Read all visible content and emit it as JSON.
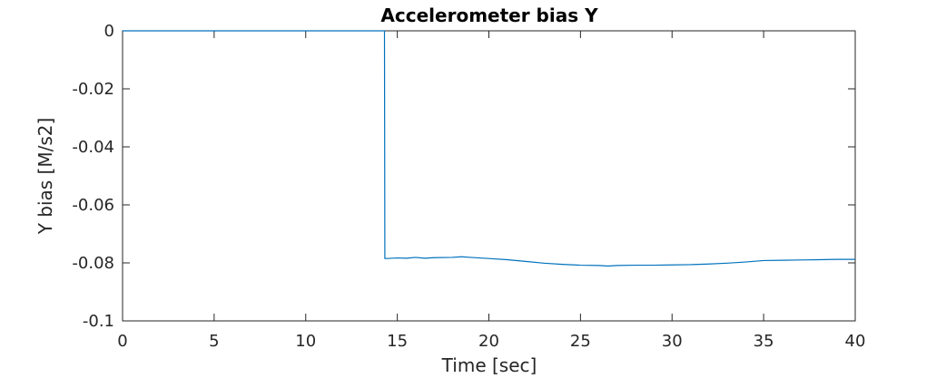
{
  "chart_data": {
    "type": "line",
    "title": "Accelerometer bias Y",
    "xlabel": "Time [sec]",
    "ylabel": "Y bias [M/s2]",
    "xlim": [
      0,
      40
    ],
    "ylim": [
      -0.1,
      0
    ],
    "grid": false,
    "x_ticks": [
      0,
      5,
      10,
      15,
      20,
      25,
      30,
      35,
      40
    ],
    "x_tick_labels": [
      "0",
      "5",
      "10",
      "15",
      "20",
      "25",
      "30",
      "35",
      "40"
    ],
    "y_ticks": [
      0,
      -0.02,
      -0.04,
      -0.06,
      -0.08,
      -0.1
    ],
    "y_tick_labels": [
      "0",
      "-0.02",
      "-0.04",
      "-0.06",
      "-0.08",
      "-0.1"
    ],
    "series": [
      {
        "color": "#0072bd",
        "x": [
          0,
          14.3,
          14.32,
          14.4,
          15,
          15.5,
          16,
          16.5,
          17,
          18,
          18.5,
          19,
          20,
          21,
          22,
          23,
          24,
          25,
          26,
          26.5,
          27,
          28,
          29,
          30,
          31,
          32,
          33,
          34,
          35,
          36,
          37,
          38,
          39,
          40
        ],
        "y": [
          0,
          0,
          -0.0785,
          -0.0785,
          -0.0783,
          -0.0784,
          -0.0781,
          -0.0784,
          -0.0782,
          -0.0781,
          -0.0779,
          -0.0781,
          -0.0785,
          -0.0789,
          -0.0795,
          -0.0801,
          -0.0805,
          -0.0808,
          -0.0809,
          -0.0811,
          -0.0809,
          -0.0808,
          -0.0808,
          -0.0807,
          -0.0806,
          -0.0804,
          -0.0801,
          -0.0797,
          -0.0792,
          -0.0791,
          -0.079,
          -0.0789,
          -0.0788,
          -0.0788
        ]
      }
    ]
  }
}
